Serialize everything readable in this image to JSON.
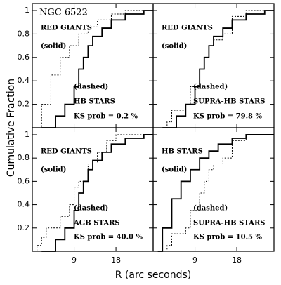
{
  "figure": {
    "ylabel": "Cumulative Fraction",
    "xlabel": "R (arc seconds)"
  },
  "chart_data": [
    {
      "type": "step",
      "title": "NGC 6522",
      "xlim": [
        0,
        26
      ],
      "ylim": [
        0,
        1.06
      ],
      "xticks": [
        9,
        18
      ],
      "yticks": [
        0.2,
        0.4,
        0.6,
        0.8,
        1
      ],
      "labels": [
        "RED GIANTS",
        "(solid)",
        "(dashed)",
        "HB STARS",
        "KS prob = 0.2 %"
      ],
      "series": [
        {
          "name": "RED GIANTS",
          "style": "solid",
          "color": "#000000",
          "x": [
            2,
            5,
            7,
            9,
            10,
            11,
            12,
            13,
            15,
            17,
            20,
            24
          ],
          "values": [
            0,
            0.1,
            0.2,
            0.35,
            0.5,
            0.6,
            0.7,
            0.78,
            0.85,
            0.92,
            0.97,
            1
          ]
        },
        {
          "name": "HB STARS",
          "style": "dashed",
          "color": "#000000",
          "x": [
            1,
            2,
            4,
            6,
            8,
            10,
            12,
            14,
            17,
            20
          ],
          "values": [
            0,
            0.2,
            0.45,
            0.6,
            0.7,
            0.8,
            0.86,
            0.92,
            0.97,
            1
          ]
        }
      ]
    },
    {
      "type": "step",
      "xlim": [
        0,
        26
      ],
      "ylim": [
        0,
        1.06
      ],
      "xticks": [
        9,
        18
      ],
      "yticks": [
        0.2,
        0.4,
        0.6,
        0.8,
        1
      ],
      "labels": [
        "RED GIANTS",
        "(solid)",
        "(dashed)",
        "SUPRA-HB STARS",
        "KS prob = 79.8 %"
      ],
      "series": [
        {
          "name": "RED GIANTS",
          "style": "solid",
          "color": "#000000",
          "x": [
            2,
            5,
            7,
            9,
            10,
            11,
            12,
            13,
            15,
            17,
            20,
            24
          ],
          "values": [
            0,
            0.1,
            0.2,
            0.35,
            0.5,
            0.6,
            0.7,
            0.78,
            0.85,
            0.92,
            0.97,
            1
          ]
        },
        {
          "name": "SUPRA-HB STARS",
          "style": "dashed",
          "color": "#000000",
          "x": [
            1,
            3,
            4,
            7,
            8,
            10,
            11,
            12,
            13,
            15,
            17,
            20
          ],
          "values": [
            0,
            0.05,
            0.15,
            0.2,
            0.35,
            0.5,
            0.6,
            0.7,
            0.75,
            0.8,
            0.95,
            1
          ]
        }
      ]
    },
    {
      "type": "step",
      "xlim": [
        0,
        26
      ],
      "ylim": [
        0,
        1.06
      ],
      "xticks": [
        9,
        18
      ],
      "yticks": [
        0.2,
        0.4,
        0.6,
        0.8,
        1
      ],
      "labels": [
        "RED GIANTS",
        "(solid)",
        "(dashed)",
        "AGB STARS",
        "KS prob = 40.0 %"
      ],
      "series": [
        {
          "name": "RED GIANTS",
          "style": "solid",
          "color": "#000000",
          "x": [
            2,
            5,
            7,
            9,
            10,
            11,
            12,
            13,
            15,
            17,
            20,
            24
          ],
          "values": [
            0,
            0.1,
            0.2,
            0.35,
            0.5,
            0.6,
            0.7,
            0.78,
            0.85,
            0.92,
            0.97,
            1
          ]
        },
        {
          "name": "AGB STARS",
          "style": "dashed",
          "color": "#000000",
          "x": [
            0.5,
            1,
            2,
            3,
            6,
            8,
            9,
            10,
            12,
            14,
            16,
            18
          ],
          "values": [
            0,
            0.05,
            0.12,
            0.2,
            0.3,
            0.4,
            0.55,
            0.6,
            0.75,
            0.85,
            0.95,
            1
          ]
        }
      ]
    },
    {
      "type": "step",
      "xlim": [
        0,
        26
      ],
      "ylim": [
        0,
        1.06
      ],
      "xticks": [
        9,
        18
      ],
      "yticks": [
        0.2,
        0.4,
        0.6,
        0.8,
        1
      ],
      "labels": [
        "HB STARS",
        "(solid)",
        "(dashed)",
        "SUPRA-HB STARS",
        "KS prob = 10.5 %"
      ],
      "series": [
        {
          "name": "HB STARS",
          "style": "solid",
          "color": "#000000",
          "x": [
            1,
            2,
            4,
            6,
            8,
            10,
            12,
            14,
            17,
            20
          ],
          "values": [
            0,
            0.2,
            0.45,
            0.6,
            0.7,
            0.8,
            0.86,
            0.92,
            0.97,
            1
          ]
        },
        {
          "name": "SUPRA-HB STARS",
          "style": "dashed",
          "color": "#000000",
          "x": [
            1,
            3,
            4,
            7,
            8,
            10,
            11,
            12,
            13,
            15,
            17,
            20
          ],
          "values": [
            0,
            0.05,
            0.15,
            0.2,
            0.35,
            0.5,
            0.6,
            0.7,
            0.75,
            0.8,
            0.95,
            1
          ]
        }
      ]
    }
  ]
}
